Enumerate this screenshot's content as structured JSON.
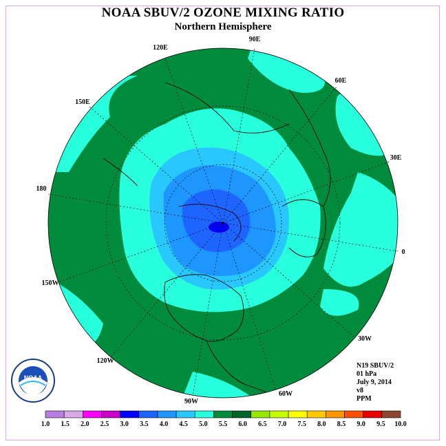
{
  "title": "NOAA SBUV/2 OZONE MIXING RATIO",
  "subtitle": "Northern Hemisphere",
  "longitude_labels": [
    "90E",
    "60E",
    "30E",
    "0",
    "30W",
    "60W",
    "90W",
    "120W",
    "150W",
    "180",
    "150E",
    "120E"
  ],
  "info": {
    "satellite": "N19 SBUV/2",
    "level": "01 hPa",
    "date": "July 9, 2014",
    "version": "v8",
    "units": "PPM"
  },
  "legend": {
    "ticks": [
      "1.0",
      "1.5",
      "2.0",
      "2.5",
      "3.0",
      "3.5",
      "4.0",
      "4.5",
      "5.0",
      "5.5",
      "6.0",
      "6.5",
      "7.0",
      "7.5",
      "8.0",
      "8.5",
      "9.0",
      "9.5",
      "10.0"
    ],
    "colors": [
      "#b87fe0",
      "#d8a8e8",
      "#ff00ff",
      "#c800c8",
      "#0000ff",
      "#1e64ff",
      "#1e96ff",
      "#28c8ff",
      "#28ffdc",
      "#008c3c",
      "#006428",
      "#96e600",
      "#c8ff00",
      "#ffff00",
      "#ffc800",
      "#ff9600",
      "#ff5000",
      "#e60000",
      "#8c4632"
    ]
  },
  "colors": {
    "dark_green": "#008c3c",
    "cyan": "#28ffdc",
    "light_blue": "#28c8ff",
    "mid_blue": "#1e96ff",
    "blue": "#1e64ff",
    "deep_blue": "#0000ff"
  },
  "logo_text": "NOAA"
}
